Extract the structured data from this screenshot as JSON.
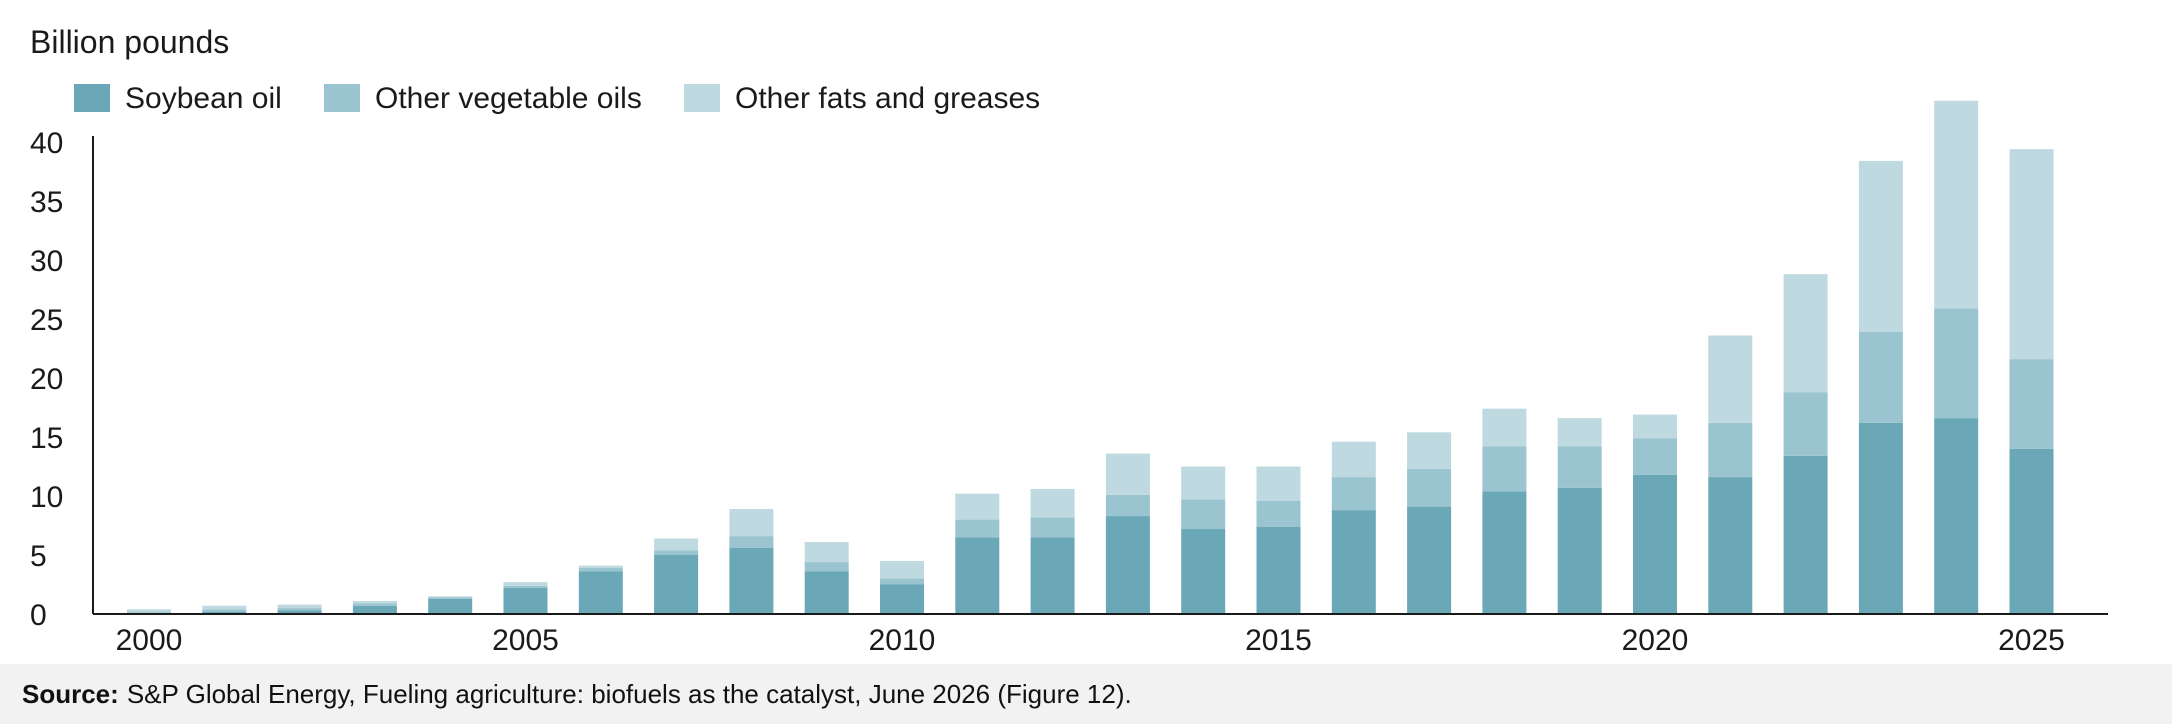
{
  "chart_data": {
    "type": "bar",
    "stacked": true,
    "ylabel": "Billion pounds",
    "ylim": [
      0,
      44
    ],
    "yticks": [
      0,
      5,
      10,
      15,
      20,
      25,
      30,
      35,
      40
    ],
    "xticks": [
      2000,
      2005,
      2010,
      2015,
      2020,
      2025
    ],
    "categories": [
      2000,
      2001,
      2002,
      2003,
      2004,
      2005,
      2006,
      2007,
      2008,
      2009,
      2010,
      2011,
      2012,
      2013,
      2014,
      2015,
      2016,
      2017,
      2018,
      2019,
      2020,
      2021,
      2022,
      2023,
      2024,
      2025
    ],
    "series": [
      {
        "name": "Soybean oil",
        "color": "#6aa8b8",
        "values": [
          0.1,
          0.2,
          0.3,
          0.7,
          1.3,
          2.2,
          3.6,
          5.0,
          5.6,
          3.6,
          2.5,
          6.5,
          6.5,
          8.3,
          7.2,
          7.4,
          8.8,
          9.1,
          10.4,
          10.7,
          11.8,
          11.6,
          13.4,
          16.2,
          16.6,
          14.0
        ]
      },
      {
        "name": "Other vegetable oils",
        "color": "#9ac4cf",
        "values": [
          0.1,
          0.2,
          0.2,
          0.2,
          0.1,
          0.2,
          0.3,
          0.4,
          1.0,
          0.8,
          0.5,
          1.5,
          1.7,
          1.8,
          2.5,
          2.2,
          2.8,
          3.2,
          3.8,
          3.5,
          3.1,
          4.6,
          5.4,
          7.7,
          9.3,
          7.6
        ]
      },
      {
        "name": "Other fats and greases",
        "color": "#bfd9e0",
        "values": [
          0.2,
          0.3,
          0.3,
          0.2,
          0.1,
          0.3,
          0.2,
          1.0,
          2.3,
          1.7,
          1.5,
          2.2,
          2.4,
          3.5,
          2.8,
          2.9,
          3.0,
          3.1,
          3.2,
          2.4,
          2.0,
          7.4,
          10.0,
          14.5,
          17.6,
          17.8
        ]
      }
    ]
  },
  "footer": {
    "source_label": "Source:",
    "source_text": "S&P Global Energy, Fueling agriculture: biofuels as the catalyst, June 2026 (Figure 12)."
  }
}
